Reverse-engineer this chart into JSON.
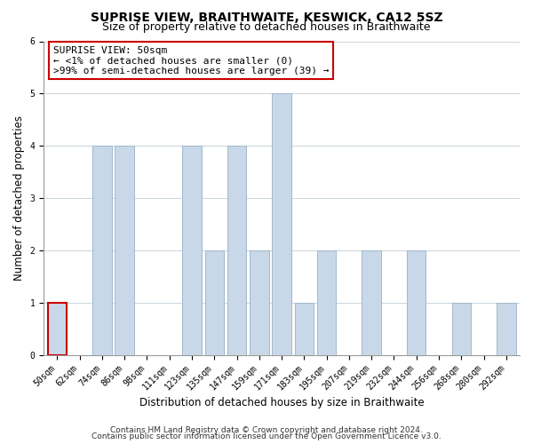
{
  "title": "SUPRISE VIEW, BRAITHWAITE, KESWICK, CA12 5SZ",
  "subtitle": "Size of property relative to detached houses in Braithwaite",
  "xlabel": "Distribution of detached houses by size in Braithwaite",
  "ylabel": "Number of detached properties",
  "footnote1": "Contains HM Land Registry data © Crown copyright and database right 2024.",
  "footnote2": "Contains public sector information licensed under the Open Government Licence v3.0.",
  "categories": [
    "50sqm",
    "62sqm",
    "74sqm",
    "86sqm",
    "98sqm",
    "111sqm",
    "123sqm",
    "135sqm",
    "147sqm",
    "159sqm",
    "171sqm",
    "183sqm",
    "195sqm",
    "207sqm",
    "219sqm",
    "232sqm",
    "244sqm",
    "256sqm",
    "268sqm",
    "280sqm",
    "292sqm"
  ],
  "values": [
    1,
    0,
    4,
    4,
    0,
    0,
    4,
    2,
    4,
    2,
    5,
    1,
    2,
    0,
    2,
    0,
    2,
    0,
    1,
    0,
    1
  ],
  "bar_color": "#c8d8e8",
  "bar_edge_color": "#a0b8cc",
  "highlight_bar_index": 0,
  "annotation_text_line1": "SUPRISE VIEW: 50sqm",
  "annotation_text_line2": "← <1% of detached houses are smaller (0)",
  "annotation_text_line3": ">99% of semi-detached houses are larger (39) →",
  "ylim": [
    0,
    6
  ],
  "yticks": [
    0,
    1,
    2,
    3,
    4,
    5,
    6
  ],
  "background_color": "#ffffff",
  "grid_color": "#c8d4dc",
  "title_fontsize": 10,
  "subtitle_fontsize": 9,
  "axis_label_fontsize": 8.5,
  "tick_fontsize": 7,
  "annotation_fontsize": 8,
  "footnote_fontsize": 6.5
}
